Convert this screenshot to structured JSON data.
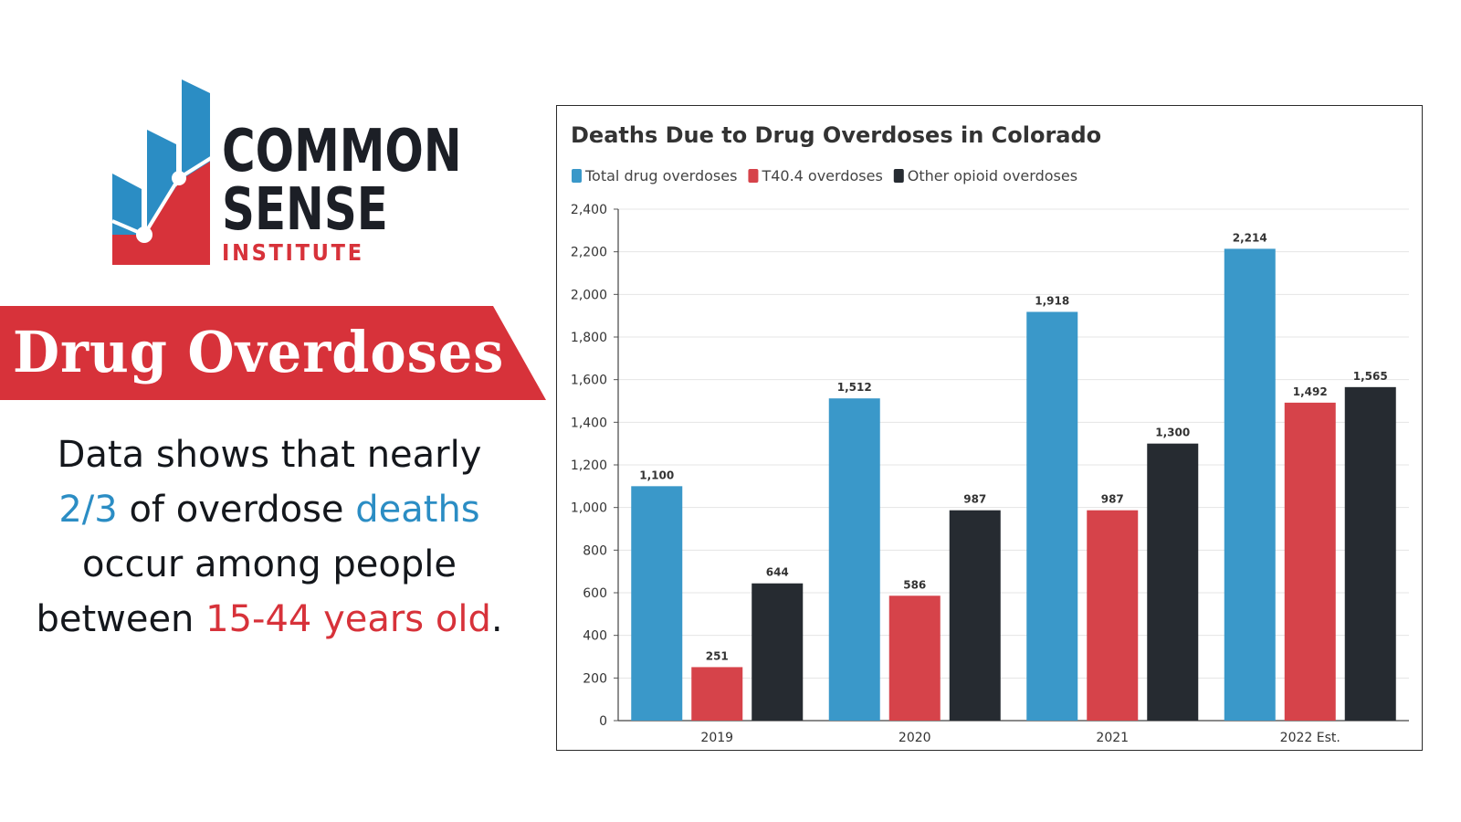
{
  "logo": {
    "line1": "COMMON",
    "line2": "SENSE",
    "line3": "INSTITUTE"
  },
  "banner": {
    "title": "Drug Overdoses"
  },
  "caption": {
    "part1": "Data shows that nearly",
    "part2_highlight": "2/3",
    "part3": "of overdose",
    "part4_highlight": "deaths",
    "part5": "occur among people",
    "part6": "between",
    "part7_highlight": "15-44 years old",
    "part8": "."
  },
  "colors": {
    "blue": "#3a98c9",
    "red": "#d6434a",
    "dark": "#262b31",
    "banner_red": "#d7323a",
    "text_dark": "#14171c"
  },
  "chart_data": {
    "type": "bar",
    "title": "Deaths Due to Drug Overdoses in Colorado",
    "categories": [
      "2019",
      "2020",
      "2021",
      "2022 Est."
    ],
    "series": [
      {
        "name": "Total drug overdoses",
        "color": "#3a98c9",
        "values": [
          1100,
          1512,
          1918,
          2214
        ],
        "labels": [
          "1,100",
          "1,512",
          "1,918",
          "2,214"
        ]
      },
      {
        "name": "T40.4 overdoses",
        "color": "#d6434a",
        "values": [
          251,
          586,
          987,
          1492
        ],
        "labels": [
          "251",
          "586",
          "987",
          "1,492"
        ]
      },
      {
        "name": "Other opioid overdoses",
        "color": "#262b31",
        "values": [
          644,
          987,
          1300,
          1565
        ],
        "labels": [
          "644",
          "987",
          "1,300",
          "1,565"
        ]
      }
    ],
    "ylim": [
      0,
      2400
    ],
    "yticks": [
      0,
      200,
      400,
      600,
      800,
      1000,
      1200,
      1400,
      1600,
      1800,
      2000,
      2200,
      2400
    ],
    "ytick_labels": [
      "0",
      "200",
      "400",
      "600",
      "800",
      "1,000",
      "1,200",
      "1,400",
      "1,600",
      "1,800",
      "2,000",
      "2,200",
      "2,400"
    ],
    "grid": true,
    "legend_position": "top-left"
  }
}
